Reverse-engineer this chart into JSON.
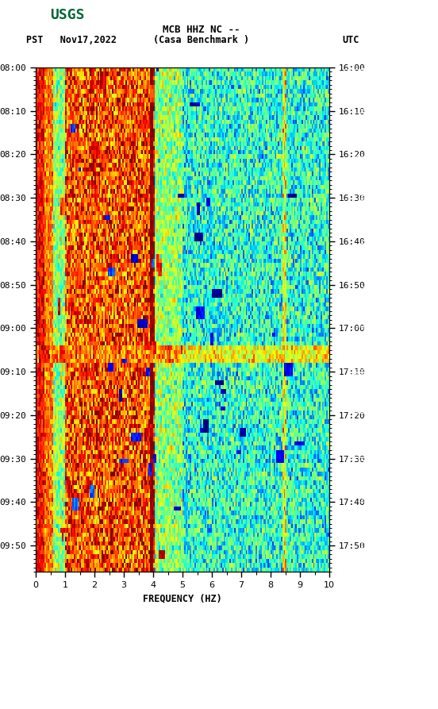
{
  "title_line1": "MCB HHZ NC --",
  "title_line2": "(Casa Benchmark )",
  "left_label": "PST   Nov17,2022",
  "right_label": "UTC",
  "xlabel": "FREQUENCY (HZ)",
  "freq_min": 0,
  "freq_max": 10,
  "left_yticks": [
    "08:00",
    "08:10",
    "08:20",
    "08:30",
    "08:40",
    "08:50",
    "09:00",
    "09:10",
    "09:20",
    "09:30",
    "09:40",
    "09:50"
  ],
  "right_yticks": [
    "16:00",
    "16:10",
    "16:20",
    "16:30",
    "16:40",
    "16:50",
    "17:00",
    "17:10",
    "17:20",
    "17:30",
    "17:40",
    "17:50"
  ],
  "xticks": [
    0,
    1,
    2,
    3,
    4,
    5,
    6,
    7,
    8,
    9,
    10
  ],
  "bg_color": "#ffffff",
  "colormap": "jet",
  "fig_width": 5.52,
  "fig_height": 8.93,
  "dpi": 100,
  "usgs_logo_color": "#006633",
  "n_freq": 200,
  "n_time": 116,
  "seed": 123
}
